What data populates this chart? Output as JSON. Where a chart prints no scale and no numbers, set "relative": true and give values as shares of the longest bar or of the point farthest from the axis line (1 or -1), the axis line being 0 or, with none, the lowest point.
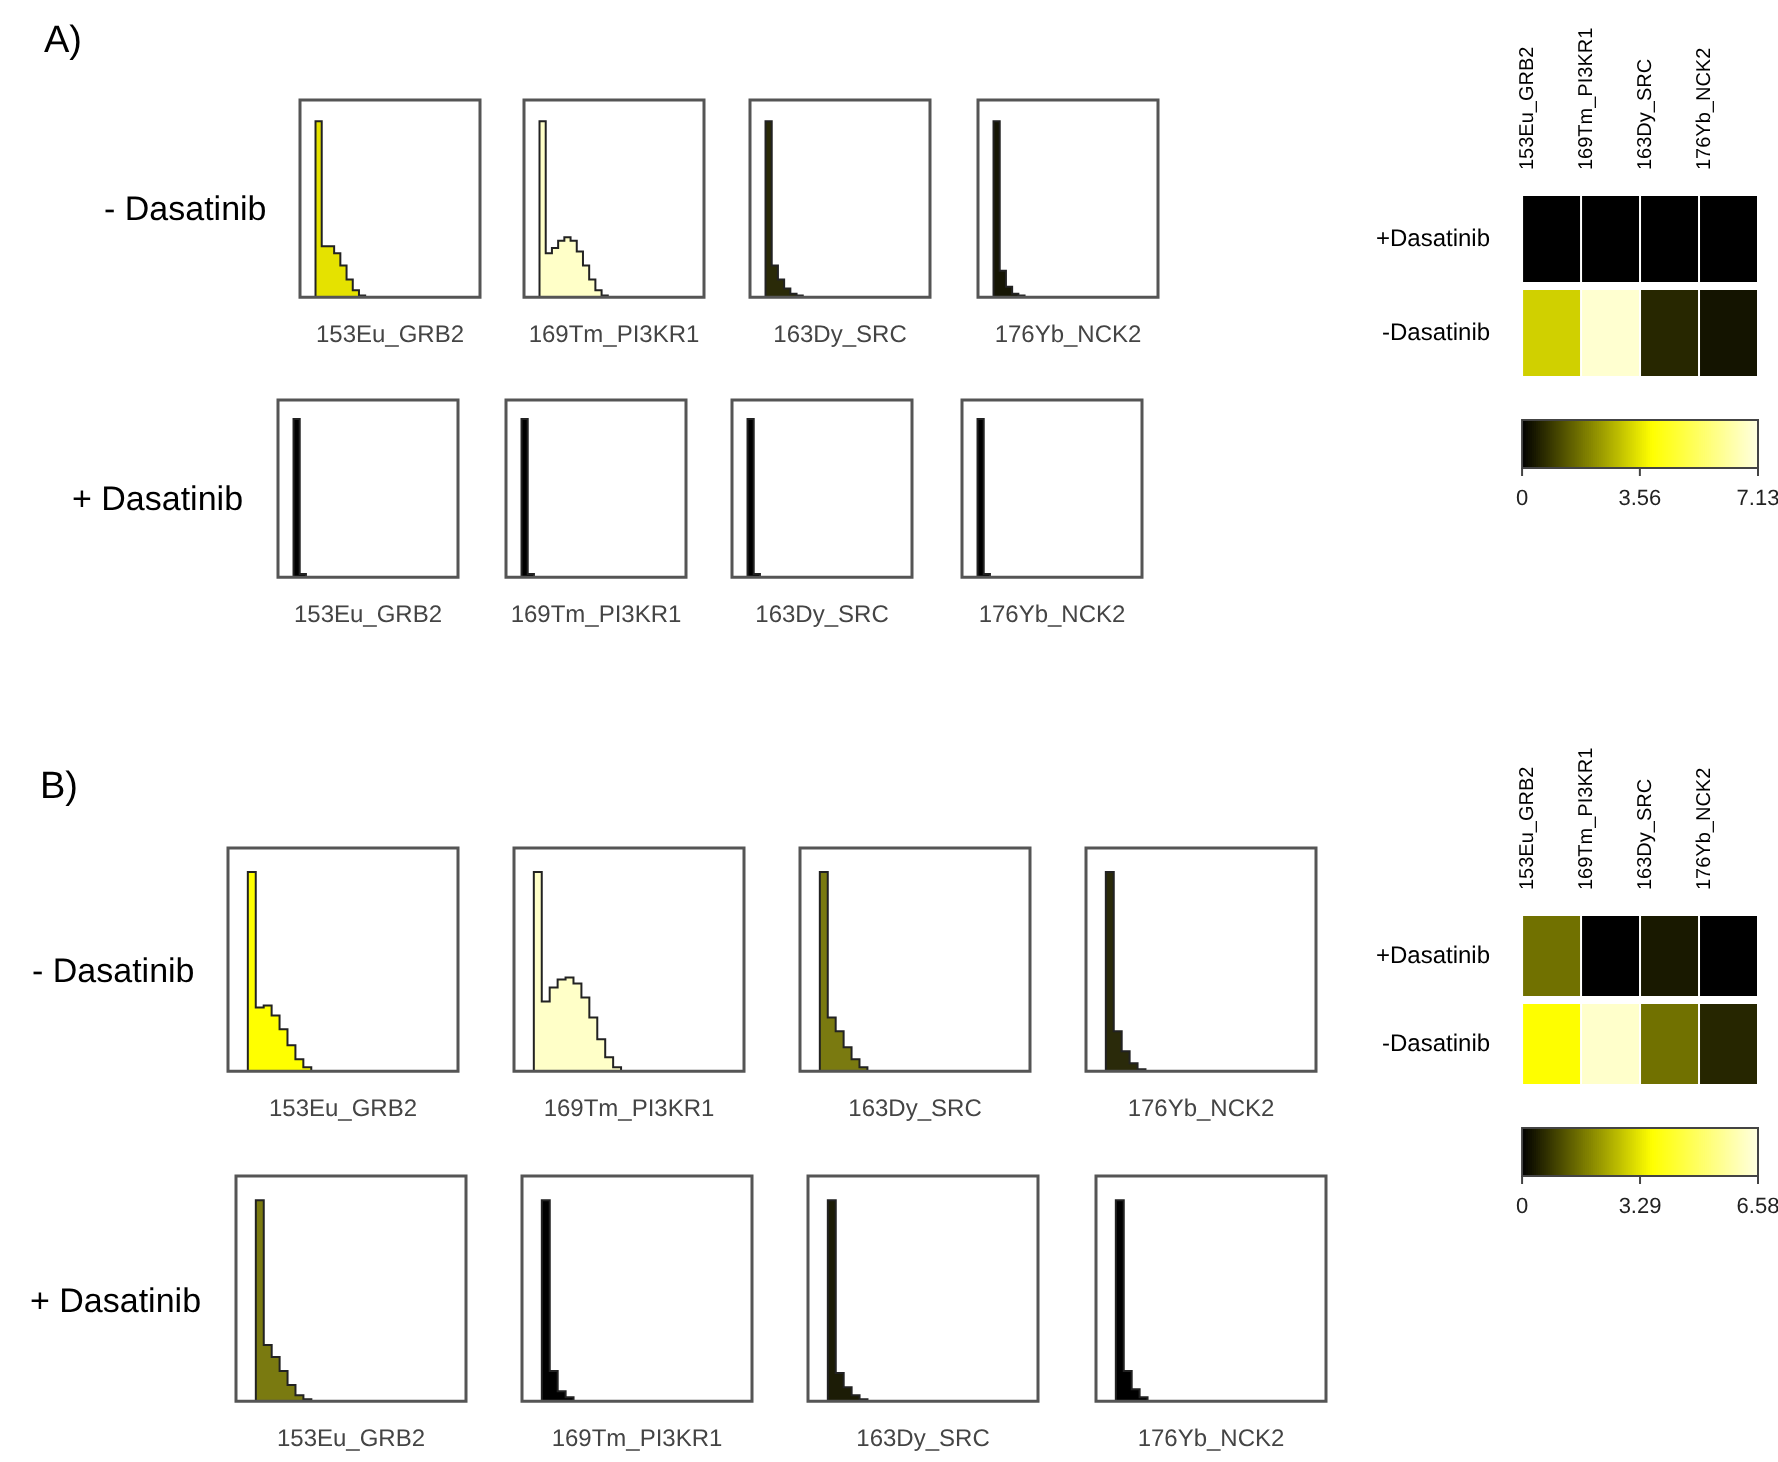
{
  "chart_data": [
    {
      "type": "area",
      "title": "A)",
      "ylabel": "- Dasatinib",
      "xlabel": "153Eu_GRB2",
      "relative": true,
      "tick_labels": false,
      "color": "#e5e200",
      "categories": [
        null,
        null,
        null,
        null,
        null,
        null,
        null,
        null,
        null,
        null,
        null,
        null,
        null,
        null,
        null,
        null,
        null,
        null,
        null,
        null,
        null,
        null,
        null,
        null,
        null,
        null,
        null,
        null,
        null,
        null
      ],
      "values": [
        0,
        0,
        0,
        1,
        0.29,
        0.29,
        0.25,
        0.18,
        0.1,
        0.04,
        0.01,
        0,
        0,
        0,
        0,
        0,
        0,
        0,
        0,
        0,
        0,
        0,
        0,
        0,
        0,
        0,
        0,
        0,
        0,
        0
      ]
    },
    {
      "type": "area",
      "xlabel": "169Tm_PI3KR1",
      "relative": true,
      "tick_labels": false,
      "color": "#ffffc8",
      "categories": [
        null,
        null,
        null,
        null,
        null,
        null,
        null,
        null,
        null,
        null,
        null,
        null,
        null,
        null,
        null,
        null,
        null,
        null,
        null,
        null,
        null,
        null,
        null,
        null,
        null,
        null,
        null,
        null,
        null,
        null
      ],
      "values": [
        0,
        0,
        0,
        1,
        0.25,
        0.28,
        0.32,
        0.34,
        0.32,
        0.26,
        0.18,
        0.1,
        0.04,
        0.01,
        0,
        0,
        0,
        0,
        0,
        0,
        0,
        0,
        0,
        0,
        0,
        0,
        0,
        0,
        0,
        0
      ]
    },
    {
      "type": "area",
      "xlabel": "163Dy_SRC",
      "relative": true,
      "tick_labels": false,
      "color": "#2a2a08",
      "categories": [
        null,
        null,
        null,
        null,
        null,
        null,
        null,
        null,
        null,
        null,
        null,
        null,
        null,
        null,
        null,
        null,
        null,
        null,
        null,
        null,
        null,
        null,
        null,
        null,
        null,
        null,
        null,
        null,
        null,
        null
      ],
      "values": [
        0,
        0,
        0,
        1,
        0.18,
        0.1,
        0.05,
        0.02,
        0.01,
        0,
        0,
        0,
        0,
        0,
        0,
        0,
        0,
        0,
        0,
        0,
        0,
        0,
        0,
        0,
        0,
        0,
        0,
        0,
        0,
        0
      ]
    },
    {
      "type": "area",
      "xlabel": "176Yb_NCK2",
      "relative": true,
      "tick_labels": false,
      "color": "#161604",
      "categories": [
        null,
        null,
        null,
        null,
        null,
        null,
        null,
        null,
        null,
        null,
        null,
        null,
        null,
        null,
        null,
        null,
        null,
        null,
        null,
        null,
        null,
        null,
        null,
        null,
        null,
        null,
        null,
        null,
        null,
        null
      ],
      "values": [
        0,
        0,
        0,
        1,
        0.15,
        0.06,
        0.02,
        0.01,
        0,
        0,
        0,
        0,
        0,
        0,
        0,
        0,
        0,
        0,
        0,
        0,
        0,
        0,
        0,
        0,
        0,
        0,
        0,
        0,
        0,
        0
      ]
    },
    {
      "type": "area",
      "ylabel": "+ Dasatinib",
      "xlabel": "153Eu_GRB2",
      "relative": true,
      "tick_labels": false,
      "color": "#000000",
      "categories": [
        null,
        null,
        null,
        null,
        null,
        null,
        null,
        null,
        null,
        null,
        null,
        null,
        null,
        null,
        null,
        null,
        null,
        null,
        null,
        null,
        null,
        null,
        null,
        null,
        null,
        null,
        null,
        null,
        null,
        null
      ],
      "values": [
        0,
        0,
        0,
        1,
        0.02,
        0,
        0,
        0,
        0,
        0,
        0,
        0,
        0,
        0,
        0,
        0,
        0,
        0,
        0,
        0,
        0,
        0,
        0,
        0,
        0,
        0,
        0,
        0,
        0,
        0
      ]
    },
    {
      "type": "area",
      "xlabel": "169Tm_PI3KR1",
      "relative": true,
      "tick_labels": false,
      "color": "#000000",
      "categories": [
        null,
        null,
        null,
        null,
        null,
        null,
        null,
        null,
        null,
        null,
        null,
        null,
        null,
        null,
        null,
        null,
        null,
        null,
        null,
        null,
        null,
        null,
        null,
        null,
        null,
        null,
        null,
        null,
        null,
        null
      ],
      "values": [
        0,
        0,
        0,
        1,
        0.02,
        0,
        0,
        0,
        0,
        0,
        0,
        0,
        0,
        0,
        0,
        0,
        0,
        0,
        0,
        0,
        0,
        0,
        0,
        0,
        0,
        0,
        0,
        0,
        0,
        0
      ]
    },
    {
      "type": "area",
      "xlabel": "163Dy_SRC",
      "relative": true,
      "tick_labels": false,
      "color": "#000000",
      "categories": [
        null,
        null,
        null,
        null,
        null,
        null,
        null,
        null,
        null,
        null,
        null,
        null,
        null,
        null,
        null,
        null,
        null,
        null,
        null,
        null,
        null,
        null,
        null,
        null,
        null,
        null,
        null,
        null,
        null,
        null
      ],
      "values": [
        0,
        0,
        0,
        1,
        0.02,
        0,
        0,
        0,
        0,
        0,
        0,
        0,
        0,
        0,
        0,
        0,
        0,
        0,
        0,
        0,
        0,
        0,
        0,
        0,
        0,
        0,
        0,
        0,
        0,
        0
      ]
    },
    {
      "type": "area",
      "xlabel": "176Yb_NCK2",
      "relative": true,
      "tick_labels": false,
      "color": "#000000",
      "categories": [
        null,
        null,
        null,
        null,
        null,
        null,
        null,
        null,
        null,
        null,
        null,
        null,
        null,
        null,
        null,
        null,
        null,
        null,
        null,
        null,
        null,
        null,
        null,
        null,
        null,
        null,
        null,
        null,
        null,
        null
      ],
      "values": [
        0,
        0,
        0,
        1,
        0.02,
        0,
        0,
        0,
        0,
        0,
        0,
        0,
        0,
        0,
        0,
        0,
        0,
        0,
        0,
        0,
        0,
        0,
        0,
        0,
        0,
        0,
        0,
        0,
        0,
        0
      ]
    },
    {
      "type": "heatmap",
      "categories": [
        "153Eu_GRB2",
        "169Tm_PI3KR1",
        "163Dy_SRC",
        "176Yb_NCK2"
      ],
      "y_categories": [
        "+Dasatinib",
        "-Dasatinib"
      ],
      "cells": [
        [
          0,
          0,
          0,
          0
        ],
        [
          3.2,
          6.9,
          0.6,
          0.3
        ]
      ],
      "clim": [
        0,
        7.13
      ],
      "cticks": [
        0,
        3.56,
        7.13
      ]
    },
    {
      "type": "area",
      "title": "B)",
      "ylabel": "- Dasatinib",
      "xlabel": "153Eu_GRB2",
      "relative": true,
      "tick_labels": false,
      "color": "#ffff00",
      "categories": [
        null,
        null,
        null,
        null,
        null,
        null,
        null,
        null,
        null,
        null,
        null,
        null,
        null,
        null,
        null,
        null,
        null,
        null,
        null,
        null,
        null,
        null,
        null,
        null,
        null,
        null,
        null,
        null,
        null,
        null
      ],
      "values": [
        0,
        0,
        0,
        1,
        0.32,
        0.33,
        0.28,
        0.21,
        0.13,
        0.06,
        0.02,
        0,
        0,
        0,
        0,
        0,
        0,
        0,
        0,
        0,
        0,
        0,
        0,
        0,
        0,
        0,
        0,
        0,
        0,
        0
      ]
    },
    {
      "type": "area",
      "xlabel": "169Tm_PI3KR1",
      "relative": true,
      "tick_labels": false,
      "color": "#ffffc8",
      "categories": [
        null,
        null,
        null,
        null,
        null,
        null,
        null,
        null,
        null,
        null,
        null,
        null,
        null,
        null,
        null,
        null,
        null,
        null,
        null,
        null,
        null,
        null,
        null,
        null,
        null,
        null,
        null,
        null,
        null,
        null
      ],
      "values": [
        0,
        0,
        0,
        1,
        0.35,
        0.42,
        0.46,
        0.47,
        0.44,
        0.37,
        0.27,
        0.16,
        0.07,
        0.02,
        0,
        0,
        0,
        0,
        0,
        0,
        0,
        0,
        0,
        0,
        0,
        0,
        0,
        0,
        0,
        0
      ]
    },
    {
      "type": "area",
      "xlabel": "163Dy_SRC",
      "relative": true,
      "tick_labels": false,
      "color": "#7a7a10",
      "categories": [
        null,
        null,
        null,
        null,
        null,
        null,
        null,
        null,
        null,
        null,
        null,
        null,
        null,
        null,
        null,
        null,
        null,
        null,
        null,
        null,
        null,
        null,
        null,
        null,
        null,
        null,
        null,
        null,
        null,
        null
      ],
      "values": [
        0,
        0,
        0,
        1,
        0.27,
        0.2,
        0.12,
        0.06,
        0.02,
        0,
        0,
        0,
        0,
        0,
        0,
        0,
        0,
        0,
        0,
        0,
        0,
        0,
        0,
        0,
        0,
        0,
        0,
        0,
        0,
        0
      ]
    },
    {
      "type": "area",
      "xlabel": "176Yb_NCK2",
      "relative": true,
      "tick_labels": false,
      "color": "#2a2a0a",
      "categories": [
        null,
        null,
        null,
        null,
        null,
        null,
        null,
        null,
        null,
        null,
        null,
        null,
        null,
        null,
        null,
        null,
        null,
        null,
        null,
        null,
        null,
        null,
        null,
        null,
        null,
        null,
        null,
        null,
        null,
        null
      ],
      "values": [
        0,
        0,
        0,
        1,
        0.2,
        0.1,
        0.04,
        0.01,
        0,
        0,
        0,
        0,
        0,
        0,
        0,
        0,
        0,
        0,
        0,
        0,
        0,
        0,
        0,
        0,
        0,
        0,
        0,
        0,
        0,
        0
      ]
    },
    {
      "type": "area",
      "ylabel": "+ Dasatinib",
      "xlabel": "153Eu_GRB2",
      "relative": true,
      "tick_labels": false,
      "color": "#7a7a10",
      "categories": [
        null,
        null,
        null,
        null,
        null,
        null,
        null,
        null,
        null,
        null,
        null,
        null,
        null,
        null,
        null,
        null,
        null,
        null,
        null,
        null,
        null,
        null,
        null,
        null,
        null,
        null,
        null,
        null,
        null,
        null
      ],
      "values": [
        0,
        0,
        0,
        1,
        0.28,
        0.22,
        0.15,
        0.08,
        0.03,
        0.01,
        0,
        0,
        0,
        0,
        0,
        0,
        0,
        0,
        0,
        0,
        0,
        0,
        0,
        0,
        0,
        0,
        0,
        0,
        0,
        0
      ]
    },
    {
      "type": "area",
      "xlabel": "169Tm_PI3KR1",
      "relative": true,
      "tick_labels": false,
      "color": "#000000",
      "categories": [
        null,
        null,
        null,
        null,
        null,
        null,
        null,
        null,
        null,
        null,
        null,
        null,
        null,
        null,
        null,
        null,
        null,
        null,
        null,
        null,
        null,
        null,
        null,
        null,
        null,
        null,
        null,
        null,
        null,
        null
      ],
      "values": [
        0,
        0,
        0,
        1,
        0.15,
        0.05,
        0.02,
        0,
        0,
        0,
        0,
        0,
        0,
        0,
        0,
        0,
        0,
        0,
        0,
        0,
        0,
        0,
        0,
        0,
        0,
        0,
        0,
        0,
        0,
        0
      ]
    },
    {
      "type": "area",
      "xlabel": "163Dy_SRC",
      "relative": true,
      "tick_labels": false,
      "color": "#1c1c06",
      "categories": [
        null,
        null,
        null,
        null,
        null,
        null,
        null,
        null,
        null,
        null,
        null,
        null,
        null,
        null,
        null,
        null,
        null,
        null,
        null,
        null,
        null,
        null,
        null,
        null,
        null,
        null,
        null,
        null,
        null,
        null
      ],
      "values": [
        0,
        0,
        0,
        1,
        0.14,
        0.07,
        0.03,
        0.01,
        0,
        0,
        0,
        0,
        0,
        0,
        0,
        0,
        0,
        0,
        0,
        0,
        0,
        0,
        0,
        0,
        0,
        0,
        0,
        0,
        0,
        0
      ]
    },
    {
      "type": "area",
      "xlabel": "176Yb_NCK2",
      "relative": true,
      "tick_labels": false,
      "color": "#000000",
      "categories": [
        null,
        null,
        null,
        null,
        null,
        null,
        null,
        null,
        null,
        null,
        null,
        null,
        null,
        null,
        null,
        null,
        null,
        null,
        null,
        null,
        null,
        null,
        null,
        null,
        null,
        null,
        null,
        null,
        null,
        null
      ],
      "values": [
        0,
        0,
        0,
        1,
        0.15,
        0.06,
        0.02,
        0,
        0,
        0,
        0,
        0,
        0,
        0,
        0,
        0,
        0,
        0,
        0,
        0,
        0,
        0,
        0,
        0,
        0,
        0,
        0,
        0,
        0,
        0
      ]
    },
    {
      "type": "heatmap",
      "categories": [
        "153Eu_GRB2",
        "169Tm_PI3KR1",
        "163Dy_SRC",
        "176Yb_NCK2"
      ],
      "y_categories": [
        "+Dasatinib",
        "-Dasatinib"
      ],
      "cells": [
        [
          1.6,
          0,
          0.36,
          0
        ],
        [
          3.6,
          6.3,
          1.6,
          0.54
        ]
      ],
      "clim": [
        0,
        6.58
      ],
      "cticks": [
        0,
        3.29,
        6.58
      ]
    }
  ]
}
